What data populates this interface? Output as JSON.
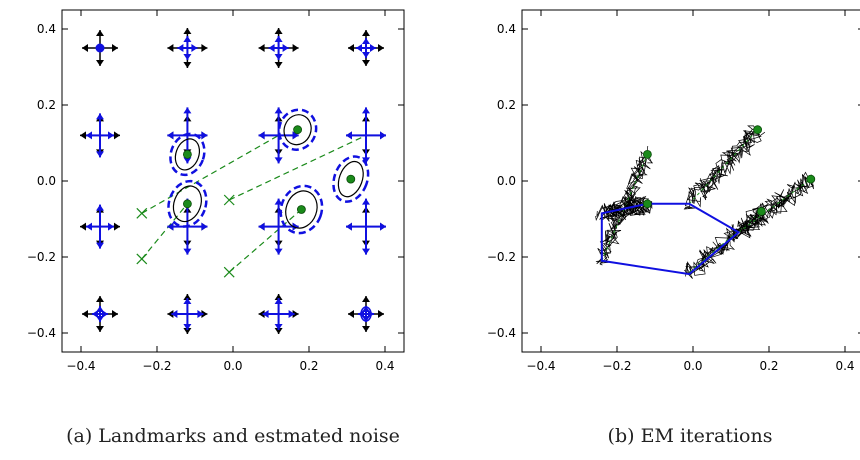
{
  "chart_data": [
    {
      "type": "scatter",
      "caption": "(a) Landmarks and estmated noise",
      "xlim": [
        -0.45,
        0.45
      ],
      "ylim": [
        -0.45,
        0.45
      ],
      "xticks": [
        "−0.4",
        "−0.2",
        "0.0",
        "0.2",
        "0.4"
      ],
      "yticks": [
        "0.4",
        "0.2",
        "0.0",
        "−0.2",
        "−0.4"
      ],
      "xtick_values": [
        -0.4,
        -0.2,
        0.0,
        0.2,
        0.4
      ],
      "ytick_values": [
        0.4,
        0.2,
        0.0,
        -0.2,
        -0.4
      ],
      "grid": false,
      "colors": {
        "black": "#000000",
        "blue": "#1010e0",
        "green": "#1a8a1a"
      },
      "landmark_grid": {
        "x": [
          -0.35,
          -0.12,
          0.12,
          0.35
        ],
        "y": [
          0.35,
          0.12,
          -0.12,
          -0.35
        ]
      },
      "cross_markers": [
        [
          -0.24,
          -0.085
        ],
        [
          -0.24,
          -0.205
        ],
        [
          -0.01,
          -0.05
        ],
        [
          -0.01,
          -0.24
        ]
      ],
      "estimates": [
        {
          "x": -0.12,
          "y": 0.07,
          "rx": 0.03,
          "ry": 0.042
        },
        {
          "x": -0.12,
          "y": -0.06,
          "rx": 0.035,
          "ry": 0.048
        },
        {
          "x": 0.17,
          "y": 0.135,
          "rx": 0.035,
          "ry": 0.04
        },
        {
          "x": 0.18,
          "y": -0.075,
          "rx": 0.04,
          "ry": 0.05
        },
        {
          "x": 0.31,
          "y": 0.005,
          "rx": 0.03,
          "ry": 0.048
        }
      ],
      "dashed_links": [
        {
          "from": [
            -0.24,
            -0.085
          ],
          "to": [
            0.12,
            0.12
          ]
        },
        {
          "from": [
            -0.24,
            -0.205
          ],
          "to": [
            -0.12,
            -0.06
          ]
        },
        {
          "from": [
            -0.01,
            -0.05
          ],
          "to": [
            0.35,
            0.12
          ]
        },
        {
          "from": [
            -0.01,
            -0.24
          ],
          "to": [
            0.18,
            -0.075
          ]
        }
      ]
    },
    {
      "type": "line",
      "caption": "(b) EM iterations",
      "xlim": [
        -0.45,
        0.45
      ],
      "ylim": [
        -0.45,
        0.45
      ],
      "xticks": [
        "−0.4",
        "−0.2",
        "0.0",
        "0.2",
        "0.4"
      ],
      "yticks": [
        "0.4",
        "0.2",
        "0.0",
        "−0.2",
        "−0.4"
      ],
      "xtick_values": [
        -0.4,
        -0.2,
        0.0,
        0.2,
        0.4
      ],
      "ytick_values": [
        0.4,
        0.2,
        0.0,
        -0.2,
        -0.4
      ],
      "grid": false,
      "colors": {
        "path": "#1010e0",
        "trace": "#000000",
        "green": "#1a8a1a"
      },
      "estimated_path": [
        [
          -0.12,
          -0.06
        ],
        [
          -0.24,
          -0.085
        ],
        [
          -0.24,
          -0.21
        ],
        [
          -0.01,
          -0.245
        ],
        [
          0.12,
          -0.135
        ],
        [
          -0.01,
          -0.06
        ],
        [
          -0.12,
          -0.06
        ]
      ],
      "final_points": [
        [
          -0.12,
          0.07
        ],
        [
          -0.12,
          -0.06
        ],
        [
          0.17,
          0.135
        ],
        [
          0.18,
          -0.08
        ],
        [
          0.31,
          0.005
        ]
      ],
      "trajectories": [
        {
          "from": [
            -0.24,
            -0.21
          ],
          "to": [
            -0.12,
            0.07
          ]
        },
        {
          "from": [
            -0.24,
            -0.085
          ],
          "to": [
            -0.12,
            -0.06
          ]
        },
        {
          "from": [
            -0.01,
            -0.06
          ],
          "to": [
            0.17,
            0.135
          ]
        },
        {
          "from": [
            -0.01,
            -0.24
          ],
          "to": [
            0.18,
            -0.08
          ]
        },
        {
          "from": [
            0.12,
            -0.135
          ],
          "to": [
            0.31,
            0.005
          ]
        }
      ]
    }
  ]
}
